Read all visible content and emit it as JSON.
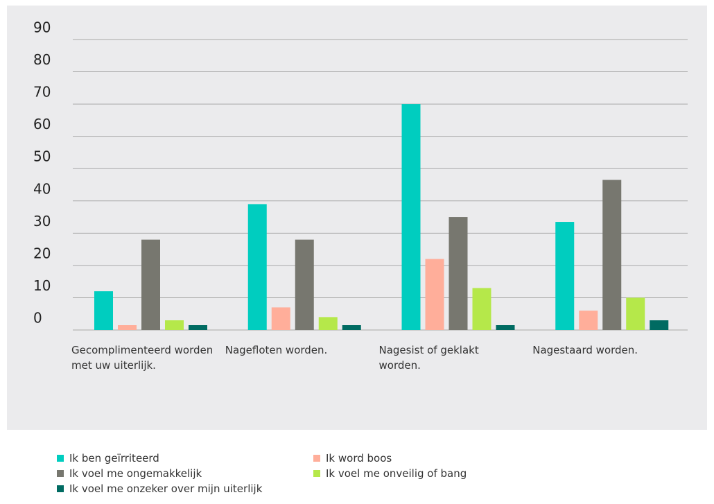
{
  "chart_data": {
    "type": "bar",
    "categories": [
      "Gecomplimenteerd worden met uw uiterlijk.",
      "Nagefloten worden.",
      "Nagesist of geklakt worden.",
      "Nagestaard worden."
    ],
    "series": [
      {
        "name": "Ik ben geïrriteerd",
        "color": "#00cdbf",
        "values": [
          12,
          39,
          70,
          33.5
        ]
      },
      {
        "name": "Ik word boos",
        "color": "#ffae9a",
        "values": [
          1.5,
          7,
          22,
          6
        ]
      },
      {
        "name": "Ik voel me ongemakkelijk",
        "color": "#77776f",
        "values": [
          28,
          28,
          35,
          46.5
        ]
      },
      {
        "name": "Ik voel me onveilig of bang",
        "color": "#b5e84a",
        "values": [
          3,
          4,
          13,
          10
        ]
      },
      {
        "name": "Ik voel me onzeker over mijn uiterlijk",
        "color": "#006b62",
        "values": [
          1.5,
          1.5,
          1.5,
          3
        ]
      }
    ],
    "ylim": [
      0,
      90
    ],
    "yticks": [
      0,
      10,
      20,
      30,
      40,
      50,
      60,
      70,
      80,
      90
    ],
    "grid": true
  }
}
